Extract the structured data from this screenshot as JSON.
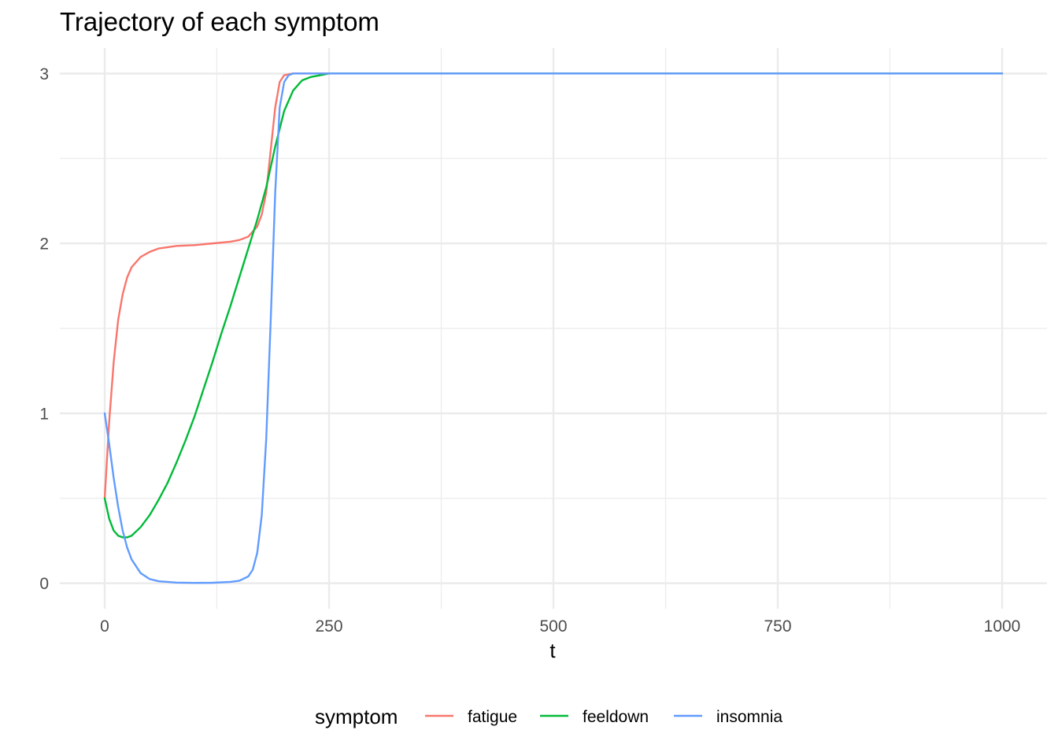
{
  "chart_data": {
    "type": "line",
    "title": "Trajectory of each symptom",
    "xlabel": "t",
    "ylabel": "",
    "xlim": [
      -50,
      1050
    ],
    "ylim": [
      -0.15,
      3.15
    ],
    "x_ticks": [
      0,
      250,
      500,
      750,
      1000
    ],
    "x_tick_labels": [
      "0",
      "250",
      "500",
      "750",
      "1000"
    ],
    "x_minor_ticks": [
      125,
      375,
      625,
      875
    ],
    "y_ticks": [
      0,
      1,
      2,
      3
    ],
    "y_tick_labels": [
      "0",
      "1",
      "2",
      "3"
    ],
    "y_minor_ticks": [
      0.5,
      1.5,
      2.5
    ],
    "grid": true,
    "legend": {
      "title": "symptom",
      "position": "bottom"
    },
    "series": [
      {
        "name": "fatigue",
        "color": "#F8766D",
        "points": [
          [
            0,
            0.5
          ],
          [
            5,
            0.95
          ],
          [
            10,
            1.3
          ],
          [
            15,
            1.55
          ],
          [
            20,
            1.7
          ],
          [
            25,
            1.8
          ],
          [
            30,
            1.86
          ],
          [
            40,
            1.92
          ],
          [
            50,
            1.95
          ],
          [
            60,
            1.97
          ],
          [
            80,
            1.985
          ],
          [
            100,
            1.99
          ],
          [
            120,
            2.0
          ],
          [
            140,
            2.01
          ],
          [
            150,
            2.02
          ],
          [
            160,
            2.04
          ],
          [
            165,
            2.07
          ],
          [
            170,
            2.1
          ],
          [
            175,
            2.17
          ],
          [
            180,
            2.3
          ],
          [
            185,
            2.55
          ],
          [
            190,
            2.8
          ],
          [
            195,
            2.95
          ],
          [
            200,
            2.99
          ],
          [
            210,
            3.0
          ],
          [
            250,
            3.0
          ],
          [
            500,
            3.0
          ],
          [
            750,
            3.0
          ],
          [
            1000,
            3.0
          ]
        ]
      },
      {
        "name": "feeldown",
        "color": "#00BA38",
        "points": [
          [
            0,
            0.5
          ],
          [
            5,
            0.38
          ],
          [
            10,
            0.31
          ],
          [
            15,
            0.28
          ],
          [
            20,
            0.27
          ],
          [
            25,
            0.27
          ],
          [
            30,
            0.28
          ],
          [
            40,
            0.33
          ],
          [
            50,
            0.4
          ],
          [
            60,
            0.49
          ],
          [
            70,
            0.59
          ],
          [
            80,
            0.71
          ],
          [
            90,
            0.84
          ],
          [
            100,
            0.98
          ],
          [
            110,
            1.14
          ],
          [
            120,
            1.3
          ],
          [
            130,
            1.47
          ],
          [
            140,
            1.63
          ],
          [
            150,
            1.8
          ],
          [
            160,
            1.97
          ],
          [
            170,
            2.14
          ],
          [
            180,
            2.33
          ],
          [
            190,
            2.57
          ],
          [
            200,
            2.78
          ],
          [
            210,
            2.9
          ],
          [
            220,
            2.96
          ],
          [
            230,
            2.98
          ],
          [
            240,
            2.99
          ],
          [
            250,
            3.0
          ],
          [
            500,
            3.0
          ],
          [
            750,
            3.0
          ],
          [
            1000,
            3.0
          ]
        ]
      },
      {
        "name": "insomnia",
        "color": "#619CFF",
        "points": [
          [
            0,
            1.0
          ],
          [
            5,
            0.82
          ],
          [
            10,
            0.62
          ],
          [
            15,
            0.45
          ],
          [
            20,
            0.31
          ],
          [
            25,
            0.21
          ],
          [
            30,
            0.14
          ],
          [
            40,
            0.06
          ],
          [
            50,
            0.025
          ],
          [
            60,
            0.012
          ],
          [
            80,
            0.004
          ],
          [
            100,
            0.002
          ],
          [
            120,
            0.003
          ],
          [
            140,
            0.008
          ],
          [
            150,
            0.015
          ],
          [
            160,
            0.04
          ],
          [
            165,
            0.08
          ],
          [
            170,
            0.18
          ],
          [
            175,
            0.4
          ],
          [
            180,
            0.85
          ],
          [
            185,
            1.55
          ],
          [
            190,
            2.3
          ],
          [
            195,
            2.8
          ],
          [
            200,
            2.95
          ],
          [
            205,
            2.99
          ],
          [
            210,
            3.0
          ],
          [
            250,
            3.0
          ],
          [
            500,
            3.0
          ],
          [
            750,
            3.0
          ],
          [
            1000,
            3.0
          ]
        ]
      }
    ]
  }
}
